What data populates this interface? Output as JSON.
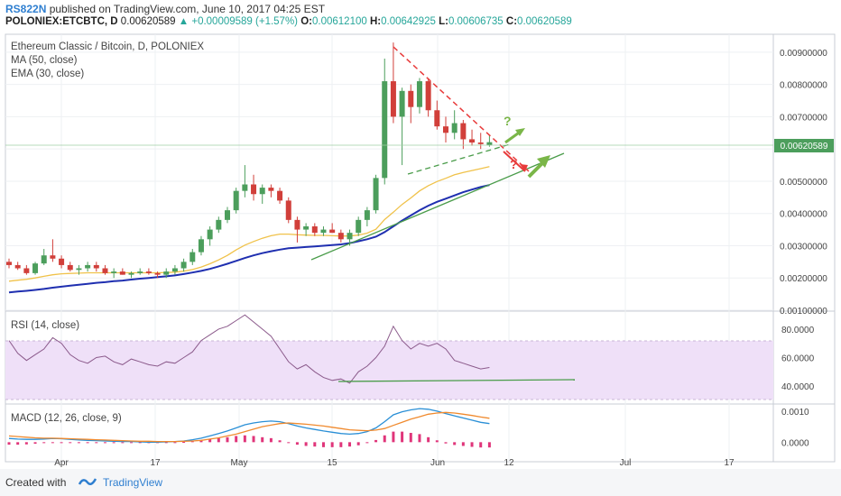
{
  "header": {
    "user": "RS822N",
    "published_text": "published on TradingView.com, June 10, 2017 04:25 EST",
    "symbol": "POLONIEX:ETCBTC, D",
    "last": "0.00620589",
    "change": "+0.00009589 (+1.57%)",
    "o_label": "O:",
    "o": "0.00612100",
    "h_label": "H:",
    "h": "0.00642925",
    "l_label": "L:",
    "l": "0.00606735",
    "c_label": "C:",
    "c": "0.00620589"
  },
  "legend": {
    "title": "Ethereum Classic / Bitcoin, D, POLONIEX",
    "ma": "MA (50, close)",
    "ema": "EMA (30, close)"
  },
  "rsi_title": "RSI (14, close)",
  "macd_title": "MACD (12, 26, close, 9)",
  "price_tag": "0.00620589",
  "annotations": {
    "q1": "?",
    "q2": "?"
  },
  "footer": {
    "created": "Created with",
    "brand": "TradingView"
  },
  "colors": {
    "up": "#4c9e5c",
    "down": "#d13f3a",
    "ma": "#1f2fb0",
    "ema": "#f0c24a",
    "rsi_line": "#8b5a8b",
    "rsi_band": "#efe0f8",
    "macd": "#2a8fd6",
    "signal": "#f08a2e",
    "hist": "#e0357a",
    "trend_green": "#4a9c4a",
    "trend_red": "#e83a3a"
  },
  "chart_data": [
    {
      "type": "candlestick",
      "name": "price",
      "x_ticks": [
        "Apr",
        "17",
        "May",
        "15",
        "Jun",
        "12",
        "Jul",
        "17"
      ],
      "y_ticks": [
        "0.00900000",
        "0.00800000",
        "0.00700000",
        "0.00600000",
        "0.00500000",
        "0.00400000",
        "0.00300000",
        "0.00200000",
        "0.00100000"
      ],
      "ylim": [
        0.001,
        0.0095
      ],
      "candles": [
        [
          0.0025,
          0.0026,
          0.0023,
          0.0024
        ],
        [
          0.0024,
          0.0025,
          0.00225,
          0.0023
        ],
        [
          0.0023,
          0.0024,
          0.0021,
          0.00215
        ],
        [
          0.00215,
          0.0025,
          0.0021,
          0.00245
        ],
        [
          0.00245,
          0.0029,
          0.0024,
          0.0027
        ],
        [
          0.0027,
          0.0032,
          0.0025,
          0.0026
        ],
        [
          0.0026,
          0.0027,
          0.0023,
          0.0024
        ],
        [
          0.0024,
          0.0025,
          0.0022,
          0.00225
        ],
        [
          0.00225,
          0.0024,
          0.0021,
          0.0023
        ],
        [
          0.0023,
          0.0025,
          0.0022,
          0.0024
        ],
        [
          0.0024,
          0.0025,
          0.0022,
          0.0023
        ],
        [
          0.0023,
          0.0024,
          0.0021,
          0.00215
        ],
        [
          0.00215,
          0.0023,
          0.002,
          0.0022
        ],
        [
          0.0022,
          0.0023,
          0.0021,
          0.0021
        ],
        [
          0.0021,
          0.0022,
          0.002,
          0.00215
        ],
        [
          0.00215,
          0.0023,
          0.0021,
          0.0022
        ],
        [
          0.0022,
          0.0023,
          0.0021,
          0.00215
        ],
        [
          0.00215,
          0.0022,
          0.002,
          0.0021
        ],
        [
          0.0021,
          0.0023,
          0.002,
          0.0022
        ],
        [
          0.0022,
          0.0024,
          0.0021,
          0.0023
        ],
        [
          0.0023,
          0.0026,
          0.0022,
          0.0025
        ],
        [
          0.0025,
          0.0029,
          0.0024,
          0.0028
        ],
        [
          0.0028,
          0.0033,
          0.0027,
          0.0032
        ],
        [
          0.0032,
          0.0036,
          0.003,
          0.0035
        ],
        [
          0.0035,
          0.0039,
          0.0034,
          0.0038
        ],
        [
          0.0038,
          0.0042,
          0.0037,
          0.0041
        ],
        [
          0.0041,
          0.0048,
          0.004,
          0.0047
        ],
        [
          0.0047,
          0.0055,
          0.0045,
          0.0049
        ],
        [
          0.0049,
          0.0052,
          0.0044,
          0.0046
        ],
        [
          0.0046,
          0.0049,
          0.0043,
          0.0048
        ],
        [
          0.0048,
          0.0049,
          0.0045,
          0.0047
        ],
        [
          0.0047,
          0.0048,
          0.0043,
          0.0044
        ],
        [
          0.0044,
          0.0045,
          0.0037,
          0.0038
        ],
        [
          0.0038,
          0.0039,
          0.0031,
          0.0035
        ],
        [
          0.0035,
          0.0037,
          0.0033,
          0.0036
        ],
        [
          0.0036,
          0.0037,
          0.0033,
          0.0034
        ],
        [
          0.0034,
          0.0036,
          0.0033,
          0.0035
        ],
        [
          0.0035,
          0.0037,
          0.0034,
          0.0034
        ],
        [
          0.0034,
          0.0035,
          0.0031,
          0.0032
        ],
        [
          0.0032,
          0.0035,
          0.003,
          0.0034
        ],
        [
          0.0034,
          0.0039,
          0.0033,
          0.0038
        ],
        [
          0.0038,
          0.0042,
          0.0036,
          0.0041
        ],
        [
          0.0041,
          0.0052,
          0.004,
          0.0051
        ],
        [
          0.0051,
          0.0088,
          0.0049,
          0.0081
        ],
        [
          0.0081,
          0.0093,
          0.0068,
          0.007
        ],
        [
          0.007,
          0.0079,
          0.0055,
          0.0078
        ],
        [
          0.0078,
          0.008,
          0.0068,
          0.0073
        ],
        [
          0.0073,
          0.0082,
          0.0071,
          0.0081
        ],
        [
          0.0081,
          0.0082,
          0.007,
          0.0072
        ],
        [
          0.0072,
          0.0075,
          0.0066,
          0.0067
        ],
        [
          0.0067,
          0.007,
          0.0062,
          0.0065
        ],
        [
          0.0065,
          0.0072,
          0.0063,
          0.0068
        ],
        [
          0.0068,
          0.0069,
          0.006,
          0.0063
        ],
        [
          0.0063,
          0.0066,
          0.0061,
          0.0062
        ],
        [
          0.0062,
          0.0065,
          0.006,
          0.00615
        ],
        [
          0.00612,
          0.00643,
          0.00607,
          0.00621
        ]
      ],
      "ma50": [
        0.00155,
        0.00158,
        0.0016,
        0.00163,
        0.00166,
        0.0017,
        0.00173,
        0.00176,
        0.00179,
        0.00182,
        0.00185,
        0.00187,
        0.0019,
        0.00192,
        0.00195,
        0.00198,
        0.002,
        0.00203,
        0.00205,
        0.00208,
        0.00212,
        0.00217,
        0.00222,
        0.00228,
        0.00236,
        0.00244,
        0.00253,
        0.00262,
        0.0027,
        0.00277,
        0.00283,
        0.00288,
        0.00292,
        0.00294,
        0.00296,
        0.00298,
        0.003,
        0.00302,
        0.00304,
        0.00308,
        0.00314,
        0.0032,
        0.00328,
        0.00342,
        0.0036,
        0.00378,
        0.00394,
        0.0041,
        0.00424,
        0.00436,
        0.00446,
        0.00456,
        0.00466,
        0.00474,
        0.00482,
        0.00488
      ],
      "ema30": [
        0.0019,
        0.00193,
        0.00196,
        0.002,
        0.00205,
        0.0021,
        0.00213,
        0.00214,
        0.00215,
        0.00216,
        0.00216,
        0.00216,
        0.00216,
        0.00216,
        0.00216,
        0.00216,
        0.00216,
        0.00216,
        0.00217,
        0.00218,
        0.00221,
        0.00226,
        0.00234,
        0.00244,
        0.00256,
        0.0027,
        0.00287,
        0.00302,
        0.00313,
        0.00323,
        0.00331,
        0.00336,
        0.00336,
        0.00334,
        0.00333,
        0.00332,
        0.00332,
        0.00331,
        0.0033,
        0.0033,
        0.00333,
        0.00339,
        0.00351,
        0.00381,
        0.00404,
        0.00428,
        0.00448,
        0.0047,
        0.00486,
        0.00499,
        0.00509,
        0.0052,
        0.00527,
        0.00533,
        0.00539,
        0.00545
      ]
    },
    {
      "type": "line",
      "name": "RSI",
      "y_ticks": [
        "80.0000",
        "60.0000",
        "40.0000"
      ],
      "ylim": [
        28,
        92
      ],
      "bands": [
        30,
        70
      ],
      "values": [
        72,
        63,
        58,
        62,
        66,
        74,
        70,
        62,
        58,
        56,
        60,
        61,
        57,
        55,
        59,
        57,
        55,
        54,
        57,
        56,
        60,
        64,
        72,
        76,
        80,
        82,
        86,
        90,
        85,
        80,
        75,
        66,
        57,
        52,
        55,
        50,
        46,
        44,
        45,
        42,
        50,
        54,
        60,
        68,
        82,
        72,
        66,
        70,
        68,
        70,
        66,
        58,
        56,
        54,
        52,
        53
      ]
    },
    {
      "type": "line",
      "name": "MACD",
      "y_ticks": [
        "0.0010",
        "0.0000"
      ],
      "ylim": [
        -0.0006,
        0.0012
      ],
      "macd": [
        0.00012,
        0.0001,
        9e-05,
        9e-05,
        0.0001,
        0.00012,
        0.00011,
        9e-05,
        7e-05,
        6e-05,
        5e-05,
        4e-05,
        3e-05,
        2e-05,
        2e-05,
        1e-05,
        0.0,
        0.0,
        1e-05,
        2e-05,
        4e-05,
        8e-05,
        0.00013,
        0.0002,
        0.00028,
        0.00036,
        0.00046,
        0.00056,
        0.00062,
        0.00066,
        0.00068,
        0.00066,
        0.0006,
        0.00052,
        0.00046,
        0.00041,
        0.00036,
        0.00032,
        0.00028,
        0.00026,
        0.00028,
        0.00034,
        0.00046,
        0.00066,
        0.00088,
        0.00098,
        0.00104,
        0.00108,
        0.00106,
        0.001,
        0.00092,
        0.00085,
        0.00078,
        0.00071,
        0.00064,
        0.0006
      ],
      "signal": [
        0.0002,
        0.00018,
        0.00016,
        0.00014,
        0.00013,
        0.00013,
        0.00012,
        0.00011,
        0.0001,
        9e-05,
        8e-05,
        7e-05,
        6e-05,
        5e-05,
        4e-05,
        3e-05,
        3e-05,
        2e-05,
        2e-05,
        2e-05,
        3e-05,
        4e-05,
        6e-05,
        0.0001,
        0.00014,
        0.0002,
        0.00026,
        0.00034,
        0.00042,
        0.0005,
        0.00055,
        0.0006,
        0.00062,
        0.0006,
        0.00058,
        0.00055,
        0.00052,
        0.00048,
        0.00044,
        0.0004,
        0.00038,
        0.00037,
        0.00039,
        0.00044,
        0.00054,
        0.00064,
        0.00074,
        0.00082,
        0.0009,
        0.00094,
        0.00096,
        0.00094,
        0.0009,
        0.00086,
        0.00081,
        0.00077
      ]
    }
  ]
}
